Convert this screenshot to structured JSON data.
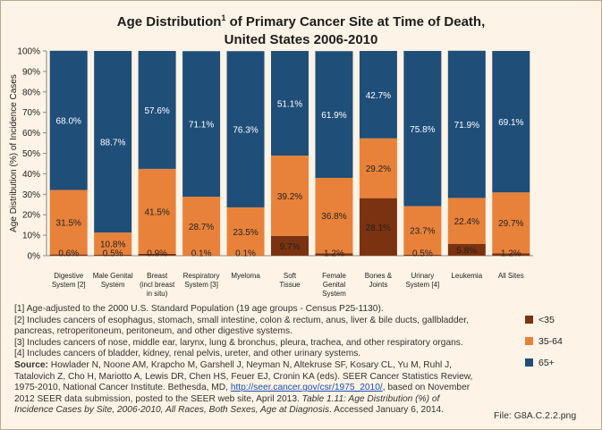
{
  "chart_data": {
    "type": "bar",
    "stacked": true,
    "title_main": "Age Distribution",
    "title_sup": "1",
    "title_rest": " of Primary Cancer Site at Time of Death,",
    "title_line2": "United States 2006-2010",
    "ylabel": "Age Distribution (%) of Incidence Cases",
    "ylim": [
      0,
      100
    ],
    "yticks": [
      "0%",
      "10%",
      "20%",
      "30%",
      "40%",
      "50%",
      "60%",
      "70%",
      "80%",
      "90%",
      "100%"
    ],
    "grid": false,
    "legend_position": "bottom-right",
    "categories": [
      [
        "Digestive",
        "System [2]"
      ],
      [
        "Male Genital",
        "System"
      ],
      [
        "Breast",
        "(incl breast",
        "in situ)"
      ],
      [
        "Respiratory",
        "System [3]"
      ],
      [
        "Myeloma"
      ],
      [
        "Soft",
        "Tissue"
      ],
      [
        "Female",
        "Genital",
        "System"
      ],
      [
        "Bones &",
        "Joints"
      ],
      [
        "Urinary",
        "System [4]"
      ],
      [
        "Leukemia"
      ],
      [
        "All Sites"
      ]
    ],
    "series": [
      {
        "name": "<35",
        "color": "#7b3210",
        "values": [
          0.6,
          0.5,
          0.9,
          0.1,
          0.1,
          9.7,
          1.2,
          28.1,
          0.5,
          5.8,
          1.2
        ],
        "labels": [
          "0.6%",
          "0.5%",
          "0.9%",
          "0.1%",
          "0.1%",
          "9.7%",
          "1.2%",
          "28.1%",
          "0.5%",
          "5.8%",
          "1.2%"
        ]
      },
      {
        "name": "35-64",
        "color": "#e8823a",
        "values": [
          31.5,
          10.8,
          41.5,
          28.7,
          23.5,
          39.2,
          36.8,
          29.2,
          23.7,
          22.4,
          29.7
        ],
        "labels": [
          "31.5%",
          "10.8%",
          "41.5%",
          "28.7%",
          "23.5%",
          "39.2%",
          "36.8%",
          "29.2%",
          "23.7%",
          "22.4%",
          "29.7%"
        ]
      },
      {
        "name": "65+",
        "color": "#1f4e79",
        "values": [
          68.0,
          88.7,
          57.6,
          71.1,
          76.3,
          51.1,
          61.9,
          42.7,
          75.8,
          71.9,
          69.1
        ],
        "labels": [
          "68.0%",
          "88.7%",
          "57.6%",
          "71.1%",
          "76.3%",
          "51.1%",
          "61.9%",
          "42.7%",
          "75.8%",
          "71.9%",
          "69.1%"
        ]
      }
    ]
  },
  "notes": {
    "n1": "[1] Age-adjusted to the 2000 U.S. Standard Population (19 age groups - Census P25-1130).",
    "n2": "[2] Includes cancers of esophagus, stomach, small intestine, colon & rectum, anus, liver & bile ducts, gallbladder, pancreas, retroperitoneum, peritoneum, and other digestive systems.",
    "n3": "[3] Includes cancers of nose, middle ear, larynx, lung & bronchus, pleura, trachea, and other respiratory organs.",
    "n4": "[4] Includes cancers of bladder, kidney, renal pelvis, ureter, and other urinary systems.",
    "source_label": "Source:",
    "source_text": " Howlader N, Noone AM, Krapcho M, Garshell J, Neyman N, Altekruse SF, Kosary CL, Yu M, Ruhl J, Tatalovich Z, Cho H, Mariotto A, Lewis DR, Chen HS, Feuer EJ, Cronin KA (eds). SEER Cancer Statistics Review, 1975-2010, National Cancer Institute. Bethesda, MD, ",
    "source_link": "http://seer.cancer.gov/csr/1975_2010/",
    "source_after_link": ", based on November 2012 SEER data submission, posted to the SEER web site, April 2013. ",
    "source_italic": "Table 1.11: Age Distribution (%) of Incidence Cases by Site, 2006-2010, All Races, Both Sexes, Age at Diagnosis",
    "source_end": ". Accessed January 6, 2014."
  },
  "file_label": "File: G8A.C.2.2.png"
}
